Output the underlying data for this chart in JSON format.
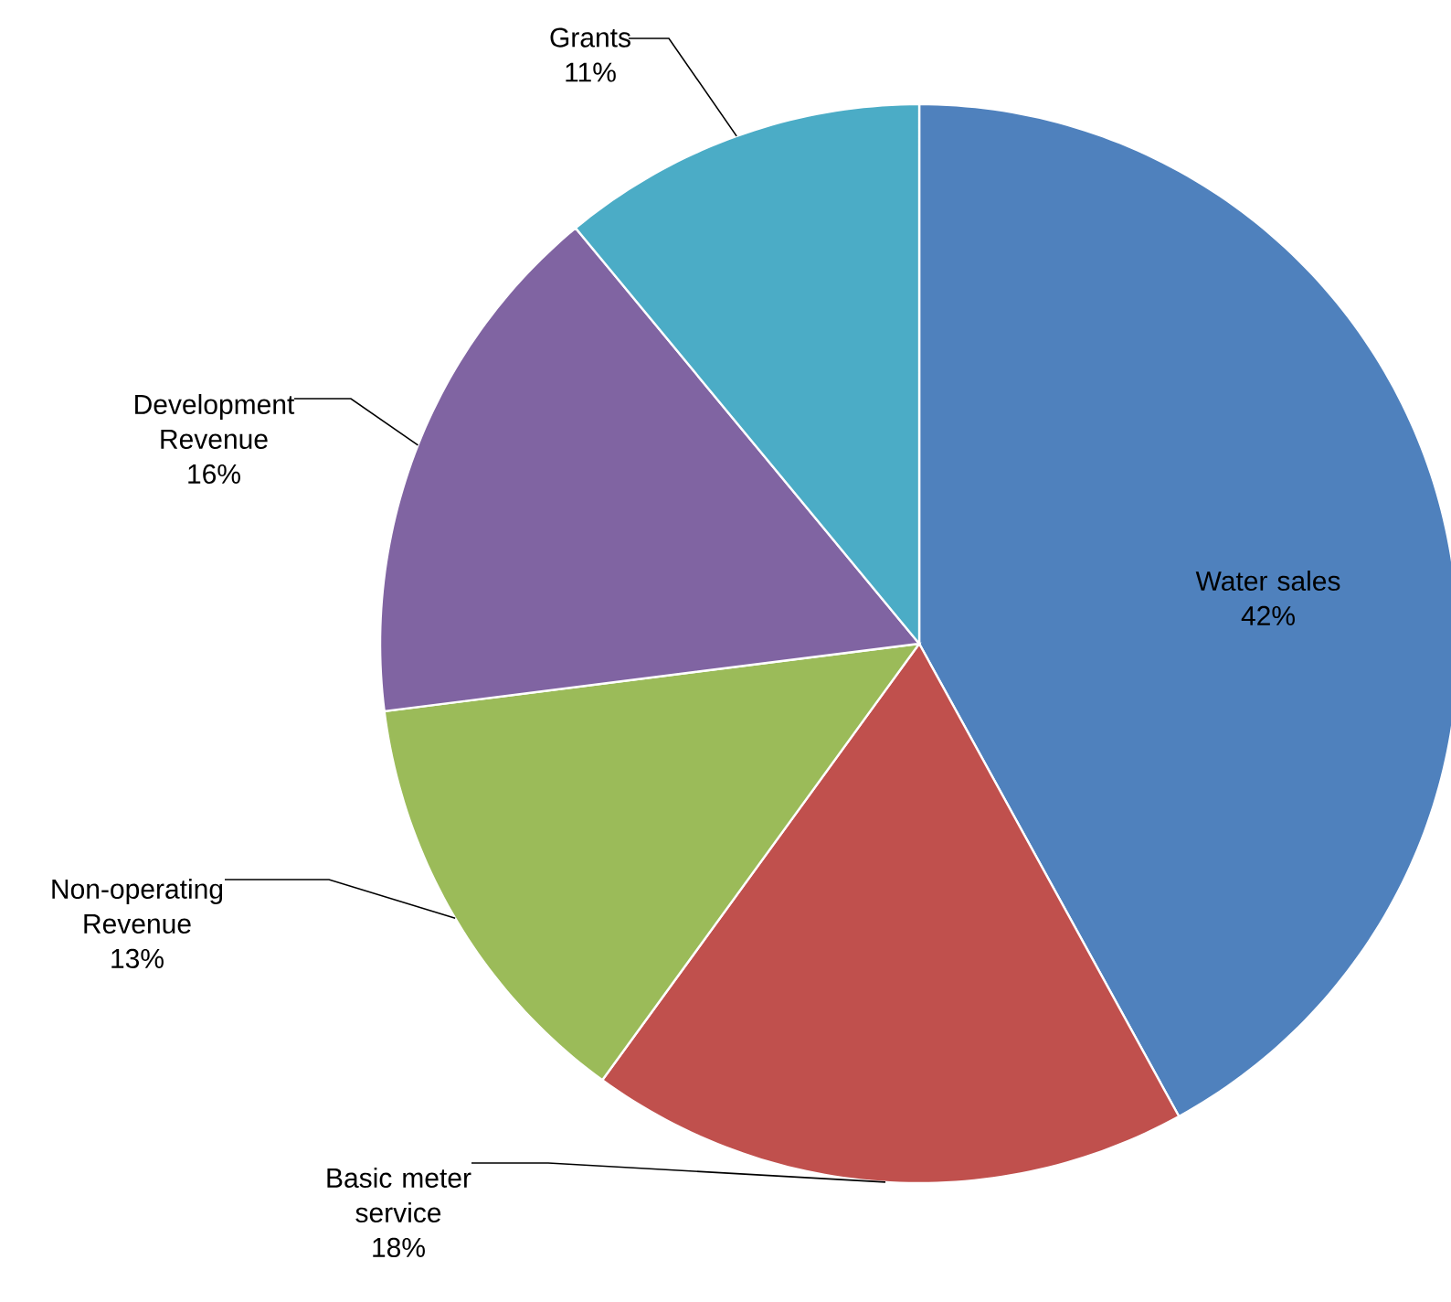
{
  "chart_data": {
    "type": "pie",
    "categories": [
      "Water sales",
      "Basic meter service",
      "Non-operating Revenue",
      "Development Revenue",
      "Grants"
    ],
    "values": [
      42,
      18,
      13,
      16,
      11
    ],
    "colors": [
      "#4f81bd",
      "#c0504d",
      "#9bbb59",
      "#8064a2",
      "#4bacc6"
    ],
    "value_labels": [
      "42%",
      "18%",
      "13%",
      "16%",
      "11%"
    ]
  }
}
